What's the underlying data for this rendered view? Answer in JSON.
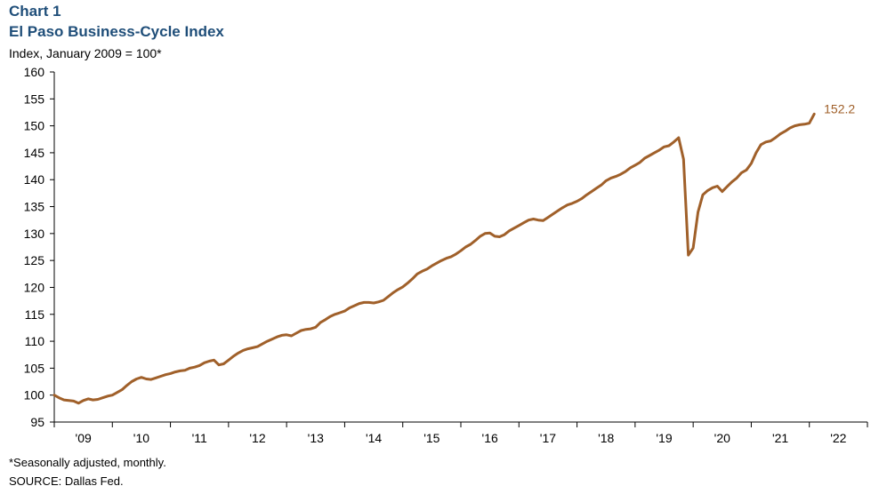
{
  "header": {
    "chart_label": "Chart 1",
    "title": "El Paso Business-Cycle Index",
    "unit_label": "Index, January 2009 = 100*"
  },
  "footer": {
    "note": "*Seasonally adjusted, monthly.",
    "source": "SOURCE: Dallas Fed."
  },
  "colors": {
    "line": "#a0602a",
    "axis": "#000000"
  },
  "chart_data": {
    "type": "line",
    "title": "El Paso Business-Cycle Index",
    "ylabel": "Index, January 2009 = 100*",
    "xlabel": "",
    "ylim": [
      95,
      160
    ],
    "yticks": [
      95,
      100,
      105,
      110,
      115,
      120,
      125,
      130,
      135,
      140,
      145,
      150,
      155,
      160
    ],
    "xticks": [
      "'09",
      "'10",
      "'11",
      "'12",
      "'13",
      "'14",
      "'15",
      "'16",
      "'17",
      "'18",
      "'19",
      "'20",
      "'21",
      "'22"
    ],
    "start": "2009-01",
    "frequency": "monthly",
    "grid": false,
    "end_label": "152.2",
    "series": [
      {
        "values": [
          100.0,
          99.5,
          99.1,
          99.0,
          98.9,
          98.5,
          99.0,
          99.3,
          99.1,
          99.2,
          99.5,
          99.8,
          100.0,
          100.5,
          101.0,
          101.8,
          102.5,
          103.0,
          103.3,
          103.0,
          102.9,
          103.2,
          103.5,
          103.8,
          104.0,
          104.3,
          104.5,
          104.6,
          105.0,
          105.2,
          105.5,
          106.0,
          106.3,
          106.5,
          105.6,
          105.8,
          106.5,
          107.2,
          107.8,
          108.3,
          108.6,
          108.8,
          109.0,
          109.5,
          110.0,
          110.4,
          110.8,
          111.1,
          111.2,
          111.0,
          111.5,
          112.0,
          112.2,
          112.3,
          112.6,
          113.5,
          114.0,
          114.6,
          115.0,
          115.3,
          115.6,
          116.2,
          116.6,
          117.0,
          117.2,
          117.2,
          117.1,
          117.3,
          117.6,
          118.3,
          119.0,
          119.6,
          120.1,
          120.8,
          121.6,
          122.5,
          123.0,
          123.4,
          124.0,
          124.5,
          125.0,
          125.4,
          125.7,
          126.2,
          126.8,
          127.5,
          128.0,
          128.7,
          129.5,
          130.0,
          130.1,
          129.5,
          129.4,
          129.8,
          130.5,
          131.0,
          131.5,
          132.0,
          132.5,
          132.7,
          132.5,
          132.4,
          133.0,
          133.6,
          134.2,
          134.8,
          135.3,
          135.6,
          136.0,
          136.5,
          137.2,
          137.8,
          138.4,
          139.0,
          139.8,
          140.3,
          140.6,
          141.0,
          141.5,
          142.2,
          142.7,
          143.2,
          144.0,
          144.5,
          145.0,
          145.5,
          146.1,
          146.3,
          147.0,
          147.8,
          143.8,
          126.0,
          127.3,
          134.0,
          137.2,
          138.0,
          138.5,
          138.8,
          137.8,
          138.7,
          139.6,
          140.3,
          141.3,
          141.8,
          143.0,
          145.0,
          146.5,
          147.0,
          147.2,
          147.8,
          148.5,
          149.0,
          149.6,
          150.0,
          150.2,
          150.3,
          150.5,
          152.2
        ]
      }
    ]
  }
}
